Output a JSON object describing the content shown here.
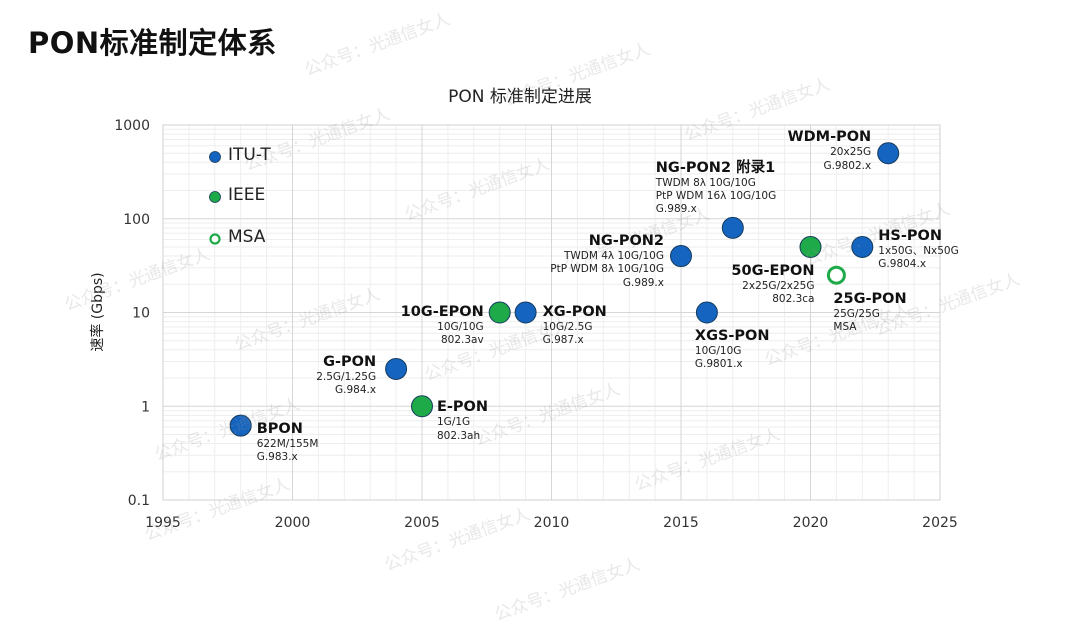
{
  "page": {
    "title": "PON标准制定体系",
    "watermark": "公众号：光通信女人"
  },
  "chart_data": {
    "type": "scatter",
    "title": "PON 标准制定进展",
    "xlabel": "",
    "ylabel": "速率 (Gbps)",
    "xlim": [
      1995,
      2025
    ],
    "ylim": [
      0.1,
      1000
    ],
    "yscale": "log",
    "xticks": [
      "1995",
      "2000",
      "2005",
      "2010",
      "2015",
      "2020",
      "2025"
    ],
    "yticks": [
      "0.1",
      "1",
      "10",
      "100",
      "1000"
    ],
    "grid": true,
    "legend_position": "top-left",
    "legend": [
      {
        "name": "ITU-T",
        "color": "#1565c0",
        "style": "filled"
      },
      {
        "name": "IEEE",
        "color": "#1faa4a",
        "style": "filled"
      },
      {
        "name": "MSA",
        "color": "#1faa4a",
        "style": "hollow"
      }
    ],
    "points": [
      {
        "name": "BPON",
        "x": 1998,
        "y": 0.622,
        "org": "ITU-T",
        "lines": [
          "622M/155M",
          "G.983.x"
        ]
      },
      {
        "name": "G-PON",
        "x": 2004,
        "y": 2.5,
        "org": "ITU-T",
        "lines": [
          "2.5G/1.25G",
          "G.984.x"
        ]
      },
      {
        "name": "E-PON",
        "x": 2005,
        "y": 1,
        "org": "IEEE",
        "lines": [
          "1G/1G",
          "802.3ah"
        ]
      },
      {
        "name": "10G-EPON",
        "x": 2008,
        "y": 10,
        "org": "IEEE",
        "lines": [
          "10G/10G",
          "802.3av"
        ]
      },
      {
        "name": "XG-PON",
        "x": 2009,
        "y": 10,
        "org": "ITU-T",
        "lines": [
          "10G/2.5G",
          "G.987.x"
        ]
      },
      {
        "name": "NG-PON2",
        "x": 2015,
        "y": 40,
        "org": "ITU-T",
        "lines": [
          "TWDM 4λ 10G/10G",
          "PtP WDM 8λ 10G/10G",
          "G.989.x"
        ]
      },
      {
        "name": "XGS-PON",
        "x": 2016,
        "y": 10,
        "org": "ITU-T",
        "lines": [
          "10G/10G",
          "G.9801.x"
        ]
      },
      {
        "name": "NG-PON2 附录1",
        "x": 2017,
        "y": 80,
        "org": "ITU-T",
        "lines": [
          "TWDM 8λ 10G/10G",
          "PtP WDM 16λ 10G/10G",
          "G.989.x"
        ]
      },
      {
        "name": "50G-EPON",
        "x": 2020,
        "y": 50,
        "org": "IEEE",
        "lines": [
          "2x25G/2x25G",
          "802.3ca"
        ]
      },
      {
        "name": "25G-PON",
        "x": 2021,
        "y": 25,
        "org": "MSA",
        "lines": [
          "25G/25G",
          "MSA"
        ]
      },
      {
        "name": "HS-PON",
        "x": 2022,
        "y": 50,
        "org": "ITU-T",
        "lines": [
          "1x50G、Nx50G",
          "G.9804.x"
        ]
      },
      {
        "name": "WDM-PON",
        "x": 2023,
        "y": 500,
        "org": "ITU-T",
        "lines": [
          "20x25G",
          "G.9802.x"
        ]
      }
    ]
  }
}
